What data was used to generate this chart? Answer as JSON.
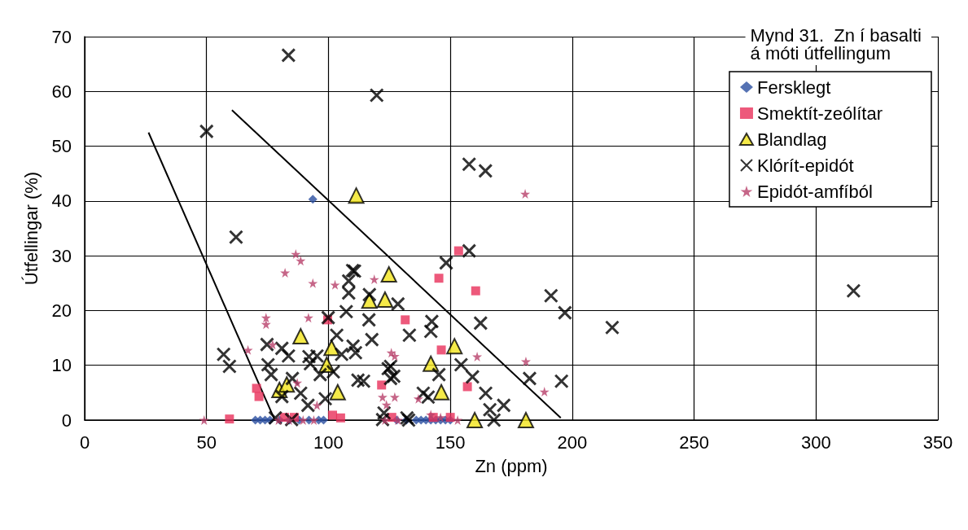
{
  "chart_data": {
    "type": "scatter",
    "title": "Mynd 31.  Zn í basalti á móti útfellingum",
    "xlabel": "Zn (ppm)",
    "ylabel": "Útfellingar (%)",
    "xlim": [
      0,
      350
    ],
    "xticks": [
      0,
      50,
      100,
      150,
      200,
      250,
      300,
      350
    ],
    "ylim": [
      0,
      70
    ],
    "yticks": [
      0,
      10,
      20,
      30,
      40,
      50,
      60,
      70
    ],
    "grid": true,
    "legend": "top right",
    "series": [
      {
        "name": "Fersklegt",
        "color": "#2b4fa0",
        "marker": "diamond",
        "x": [
          93.6,
          70,
          72,
          74,
          76,
          80,
          84,
          88,
          92,
          96,
          98,
          128,
          132,
          136,
          138,
          140,
          142,
          144,
          146,
          148,
          150
        ],
        "values": [
          40.3,
          0,
          0,
          0,
          0,
          0,
          0,
          0,
          0,
          0,
          0,
          0,
          0,
          0,
          0,
          0,
          0,
          0,
          0,
          0,
          0
        ]
      },
      {
        "name": "Smektít-zeólítar",
        "color": "#e8305a",
        "marker": "square",
        "x": [
          59.4,
          70.5,
          71.5,
          101.7,
          105,
          131.5,
          99.7,
          153.4,
          145.3,
          160.4,
          146.3,
          157,
          121.8,
          82,
          86,
          126,
          143,
          150
        ],
        "values": [
          0.2,
          5.8,
          4.3,
          0.9,
          0.4,
          18.3,
          18.3,
          30.9,
          25.9,
          23.6,
          12.8,
          6.1,
          6.4,
          0.5,
          0.5,
          0.5,
          0.5,
          0.5
        ]
      },
      {
        "name": "Blandlag",
        "color": "#f2e51c",
        "marker": "triangle",
        "x": [
          111.4,
          124.8,
          116.8,
          123.2,
          88.6,
          101.3,
          99.3,
          79.9,
          82.9,
          103.8,
          151.7,
          142,
          146.3,
          160,
          181
        ],
        "values": [
          41,
          26.6,
          21.8,
          22,
          15.3,
          13.2,
          10.1,
          5.5,
          6.5,
          5.1,
          13.5,
          10.3,
          5.1,
          0,
          0
        ]
      },
      {
        "name": "Klórít-epidót",
        "color": "#000000",
        "marker": "cross",
        "x": [
          83.6,
          119.8,
          50,
          62.1,
          157.7,
          164.4,
          157.7,
          148.3,
          191.3,
          197,
          315.4,
          216.4,
          162.4,
          133.2,
          116.6,
          142.4,
          142,
          182.5,
          195.6,
          154.4,
          159.1,
          164.5,
          171.9,
          166.2,
          167.9,
          145.3,
          140.9,
          125.5,
          125.5,
          114.4,
          117.8,
          110.7,
          132.9,
          122.2,
          109.9,
          108.3,
          108.3,
          116.8,
          128.5,
          107.3,
          99.9,
          103.4,
          110.1,
          57,
          59.4,
          74.8,
          80.9,
          83.6,
          92,
          95.3,
          92.6,
          105.4,
          111.1,
          75.2,
          76.5,
          85.2,
          96.6,
          102,
          112.1,
          80.9,
          88.6,
          91.6,
          98.7,
          124.5,
          126.8,
          122.8,
          132.2,
          78.2,
          84.9,
          138.9
        ],
        "values": [
          66.6,
          59.3,
          52.7,
          33.4,
          46.7,
          45.5,
          30.9,
          28.7,
          22.7,
          19.6,
          23.6,
          16.9,
          17.7,
          15.5,
          18.3,
          18,
          16.2,
          7.6,
          7.1,
          10.1,
          7.9,
          4.9,
          2.7,
          1.9,
          0,
          8.3,
          4.2,
          7.6,
          9.8,
          7.1,
          14.7,
          27.2,
          0,
          0.1,
          27.3,
          25.4,
          23.2,
          22.9,
          21.2,
          19.8,
          18.7,
          15.5,
          13.5,
          12,
          9.8,
          13.8,
          13.1,
          11.7,
          11.6,
          11.7,
          10.3,
          12,
          12.3,
          10.1,
          8.3,
          7.6,
          8.3,
          8.8,
          7.3,
          4.3,
          4.9,
          2.7,
          3.9,
          9.4,
          8,
          1.3,
          0.4,
          0.4,
          0.1,
          4.9
        ]
      },
      {
        "name": "Epidót-amfíból",
        "color": "#b8406a",
        "marker": "star",
        "x": [
          180.7,
          181,
          188.6,
          86.6,
          88.6,
          82.2,
          93.6,
          102.7,
          118.8,
          74.4,
          74.4,
          91.8,
          67,
          77.1,
          87.2,
          125.8,
          127.2,
          49,
          95.3,
          79.5,
          83.9,
          89.6,
          94,
          122.2,
          123.8,
          136.9,
          123.2,
          128.5,
          161,
          127.2,
          153,
          142,
          146
        ],
        "values": [
          41.3,
          10.7,
          5.2,
          30.3,
          29.1,
          26.9,
          25,
          24.7,
          25.7,
          18.7,
          17.5,
          18.7,
          12.8,
          13.8,
          6.8,
          12.3,
          11.7,
          0,
          2.7,
          0,
          0,
          0,
          0,
          4.2,
          2.8,
          3.9,
          0,
          0,
          11.6,
          4.2,
          0,
          1,
          0.5
        ]
      },
      {
        "type": "line",
        "color": "#000000",
        "x": [
          26.2,
          78
        ],
        "values": [
          52.5,
          0
        ]
      },
      {
        "type": "line",
        "color": "#000000",
        "x": [
          60.4,
          195.3
        ],
        "values": [
          56.6,
          0.4
        ]
      }
    ]
  }
}
